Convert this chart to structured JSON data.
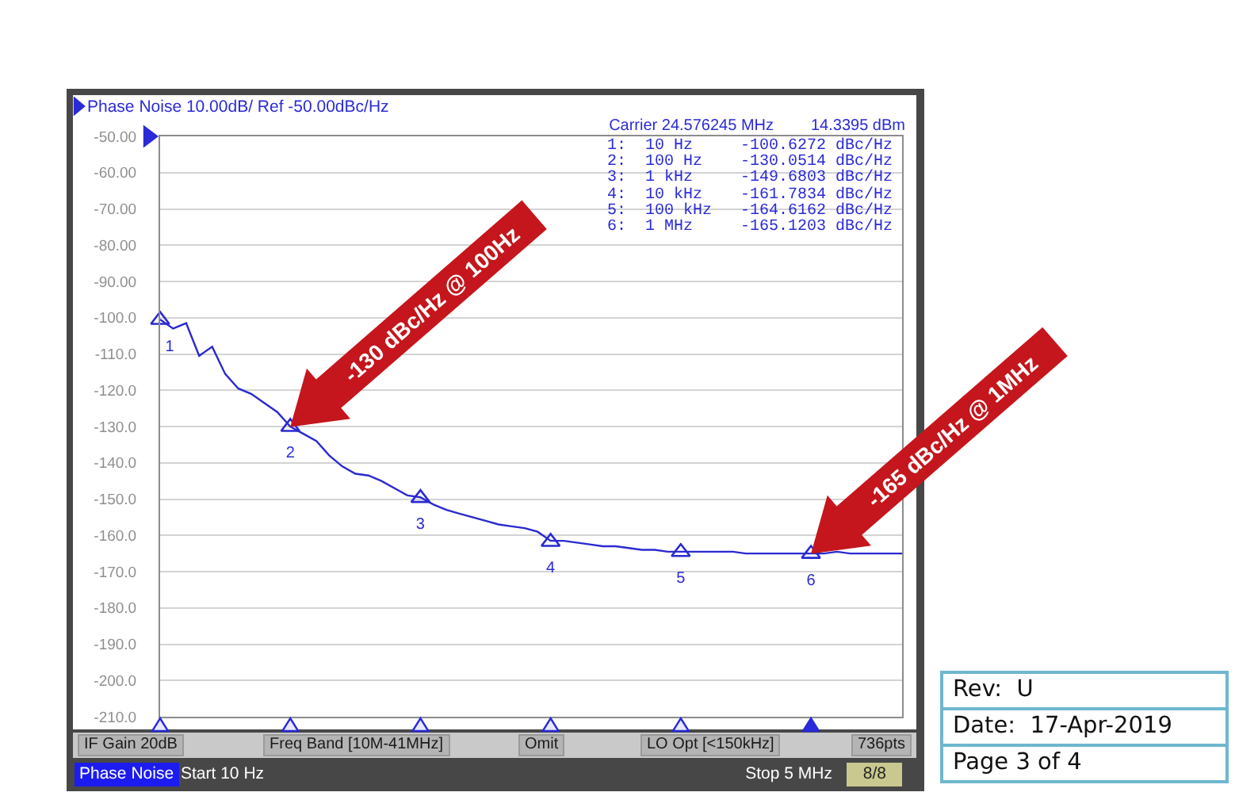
{
  "chart_data": {
    "type": "line",
    "title": "Phase Noise 10.00dB/ Ref -50.00dBc/Hz",
    "categories": [
      null,
      null,
      null,
      null,
      null,
      null,
      null,
      null,
      null,
      null,
      null,
      null,
      null,
      null,
      null,
      null,
      null,
      null,
      null,
      null,
      null,
      null,
      null,
      null,
      null,
      null,
      null,
      null,
      null,
      null,
      null,
      null,
      null,
      null,
      null,
      null,
      null,
      null,
      null,
      null,
      null,
      null,
      null,
      null,
      null,
      null,
      null,
      null,
      null,
      null,
      null,
      null,
      null,
      null,
      null,
      null,
      null,
      null
    ],
    "series": [
      {
        "color": "#2a2ad0",
        "values": [
          -100.5,
          -103,
          -101.5,
          -110.5,
          -108,
          -115.5,
          -119.5,
          -121,
          -123.5,
          -126,
          -130,
          -132,
          -134,
          -138,
          -141,
          -143,
          -143.5,
          -145,
          -147,
          -149,
          -149.5,
          -151.5,
          -153,
          -154,
          -155,
          -156,
          -157,
          -157.5,
          -158,
          -159,
          -161.5,
          -161.5,
          -162,
          -162.5,
          -163,
          -163,
          -163.5,
          -164,
          -164,
          -164.5,
          -164.5,
          -164.5,
          -164.5,
          -164.5,
          -164.5,
          -165,
          -165,
          -165,
          -165,
          -165,
          -165,
          -165,
          -164.5,
          -165,
          -165,
          -165,
          -165,
          -165
        ]
      },
      {
        "type": "scatter",
        "marker": "triangle",
        "color": "#2a2ad0",
        "values": [
          -100.6,
          null,
          null,
          null,
          null,
          null,
          null,
          null,
          null,
          null,
          -130.1,
          null,
          null,
          null,
          null,
          null,
          null,
          null,
          null,
          null,
          -149.7,
          null,
          null,
          null,
          null,
          null,
          null,
          null,
          null,
          null,
          -161.8,
          null,
          null,
          null,
          null,
          null,
          null,
          null,
          null,
          null,
          -164.6,
          null,
          null,
          null,
          null,
          null,
          null,
          null,
          null,
          null,
          -165.1,
          null,
          null,
          null,
          null,
          null,
          null,
          null
        ]
      }
    ],
    "ylim": [
      -210,
      -50
    ],
    "yticks": [
      {
        "value": -50,
        "label": "-50.00"
      },
      {
        "value": -60,
        "label": "-60.00"
      },
      {
        "value": -70,
        "label": "-70.00"
      },
      {
        "value": -80,
        "label": "-80.00"
      },
      {
        "value": -90,
        "label": "-90.00"
      },
      {
        "value": -100,
        "label": "-100.0"
      },
      {
        "value": -110,
        "label": "-110.0"
      },
      {
        "value": -120,
        "label": "-120.0"
      },
      {
        "value": -130,
        "label": "-130.0"
      },
      {
        "value": -140,
        "label": "-140.0"
      },
      {
        "value": -150,
        "label": "-150.0"
      },
      {
        "value": -160,
        "label": "-160.0"
      },
      {
        "value": -170,
        "label": "-170.0"
      },
      {
        "value": -180,
        "label": "-180.0"
      },
      {
        "value": -190,
        "label": "-190.0"
      },
      {
        "value": -200,
        "label": "-200.0"
      },
      {
        "value": -210,
        "label": "-210.0"
      }
    ],
    "tick_labels": "y",
    "grid": "y",
    "annotations": [
      "Carrier 24.576245 MHz",
      "14.3395 dBm",
      "1:  10 Hz     -100.6272 dBc/Hz",
      "2:  100 Hz    -130.0514 dBc/Hz",
      "3:  1 kHz     -149.6803 dBc/Hz",
      "4:  10 kHz    -161.7834 dBc/Hz",
      "5:  100 kHz   -164.6162 dBc/Hz",
      "6:  1 MHz     -165.1203 dBc/Hz",
      "-130 dBc/Hz @ 100Hz",
      "-165 dBc/Hz @ 1MHz",
      "1",
      "2",
      "3",
      "4",
      "5",
      "6",
      "IF Gain 20dB",
      "Freq Band [10M-41MHz]",
      "Omit",
      "LO Opt [<150kHz]",
      "736pts",
      "Phase Noise",
      "Start 10 Hz",
      "Stop 5 MHz",
      "8/8",
      "Rev:  U",
      "Date:  17-Apr-2019",
      "Page 3 of 4"
    ]
  }
}
